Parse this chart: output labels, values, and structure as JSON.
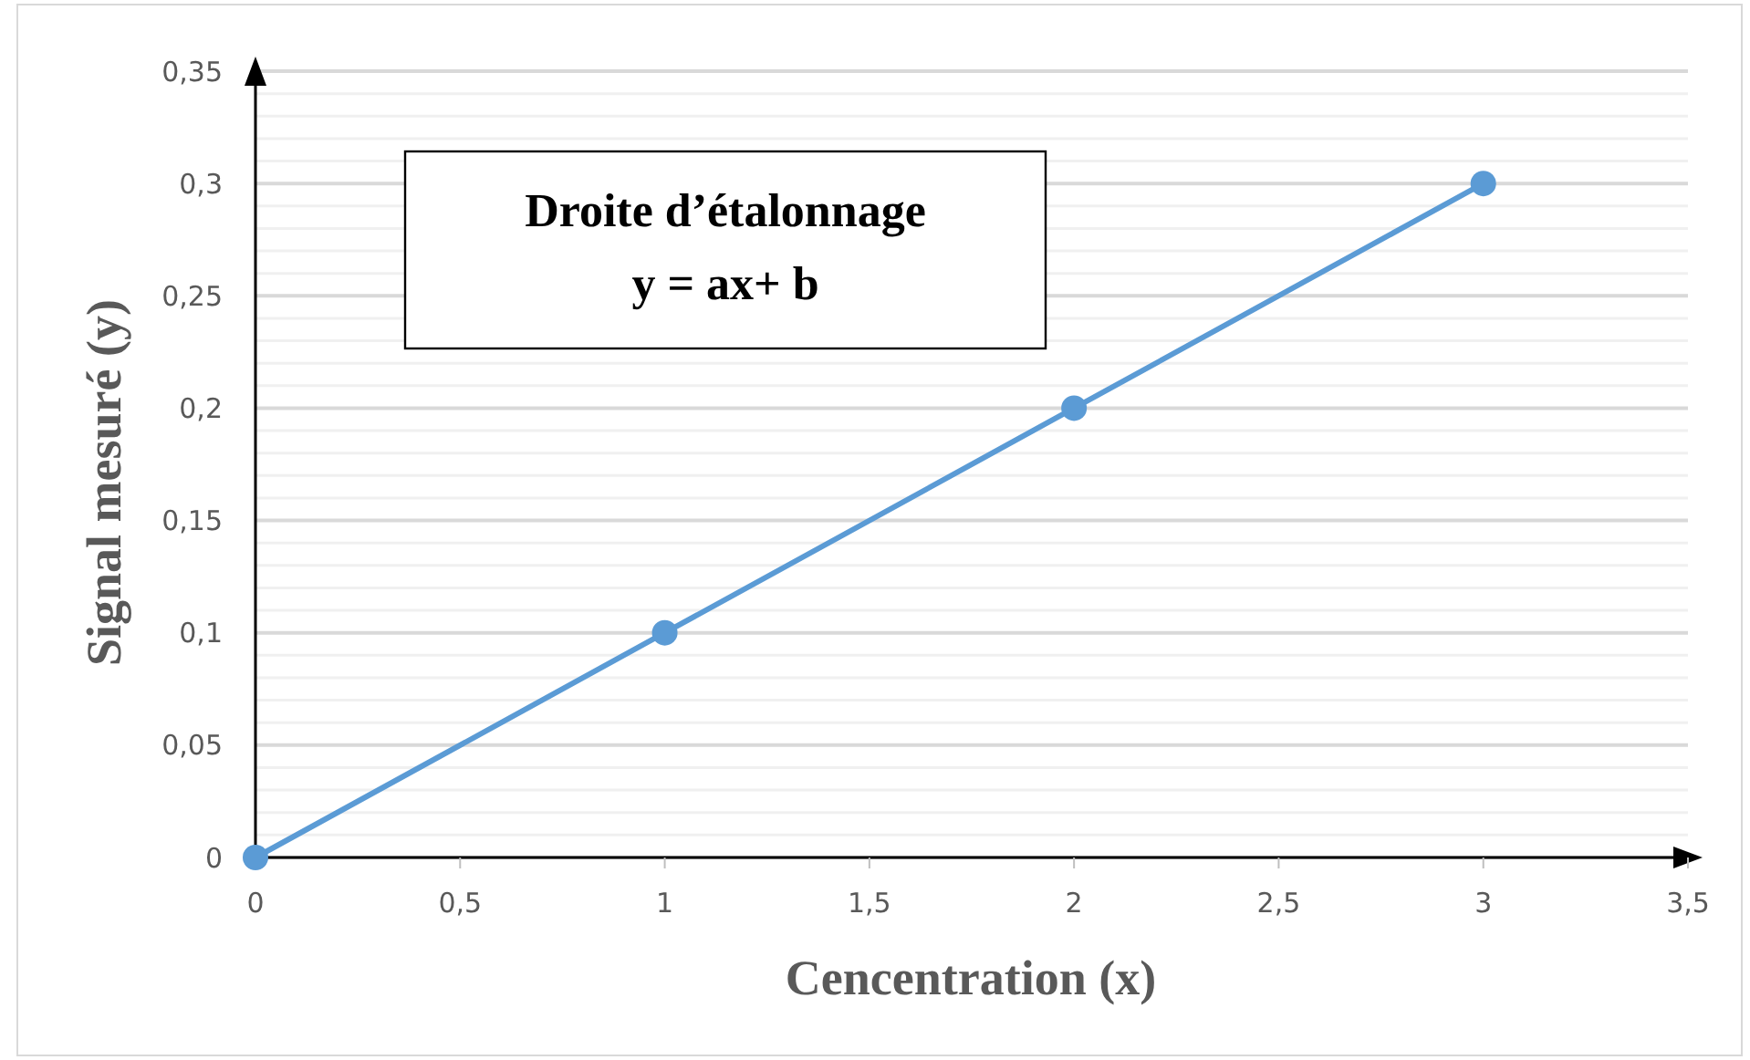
{
  "chart_data": {
    "type": "line",
    "title": "Droite d’étalonnage",
    "subtitle": "y = ax+ b",
    "xlabel": "Cencentration (x)",
    "ylabel": "Signal mesuré (y)",
    "x": [
      0,
      1,
      2,
      3
    ],
    "series": [
      {
        "color": "#5b9bd5",
        "values": [
          0,
          0.1,
          0.2,
          0.3
        ]
      }
    ],
    "xlim": [
      0,
      3.5
    ],
    "xticks": [
      {
        "value": 0,
        "label": "0"
      },
      {
        "value": 0.5,
        "label": "0,5"
      },
      {
        "value": 1,
        "label": "1"
      },
      {
        "value": 1.5,
        "label": "1,5"
      },
      {
        "value": 2,
        "label": "2"
      },
      {
        "value": 2.5,
        "label": "2,5"
      },
      {
        "value": 3,
        "label": "3"
      },
      {
        "value": 3.5,
        "label": "3,5"
      }
    ],
    "ylim": [
      0,
      0.35
    ],
    "yticks": [
      {
        "value": 0,
        "label": "0"
      },
      {
        "value": 0.01,
        "label": null
      },
      {
        "value": 0.02,
        "label": null
      },
      {
        "value": 0.03,
        "label": null
      },
      {
        "value": 0.04,
        "label": null
      },
      {
        "value": 0.05,
        "label": "0,05"
      },
      {
        "value": 0.06,
        "label": null
      },
      {
        "value": 0.07,
        "label": null
      },
      {
        "value": 0.08,
        "label": null
      },
      {
        "value": 0.09,
        "label": null
      },
      {
        "value": 0.1,
        "label": "0,1"
      },
      {
        "value": 0.11,
        "label": null
      },
      {
        "value": 0.12,
        "label": null
      },
      {
        "value": 0.13,
        "label": null
      },
      {
        "value": 0.14,
        "label": null
      },
      {
        "value": 0.15,
        "label": "0,15"
      },
      {
        "value": 0.16,
        "label": null
      },
      {
        "value": 0.17,
        "label": null
      },
      {
        "value": 0.18,
        "label": null
      },
      {
        "value": 0.19,
        "label": null
      },
      {
        "value": 0.2,
        "label": "0,2"
      },
      {
        "value": 0.21,
        "label": null
      },
      {
        "value": 0.22,
        "label": null
      },
      {
        "value": 0.23,
        "label": null
      },
      {
        "value": 0.24,
        "label": null
      },
      {
        "value": 0.25,
        "label": "0,25"
      },
      {
        "value": 0.26,
        "label": null
      },
      {
        "value": 0.27,
        "label": null
      },
      {
        "value": 0.28,
        "label": null
      },
      {
        "value": 0.29,
        "label": null
      },
      {
        "value": 0.3,
        "label": "0,3"
      },
      {
        "value": 0.31,
        "label": null
      },
      {
        "value": 0.32,
        "label": null
      },
      {
        "value": 0.33,
        "label": null
      },
      {
        "value": 0.34,
        "label": null
      },
      {
        "value": 0.35,
        "label": "0,35"
      }
    ],
    "grid": "y",
    "marker": "circle",
    "line_style": "solid"
  }
}
